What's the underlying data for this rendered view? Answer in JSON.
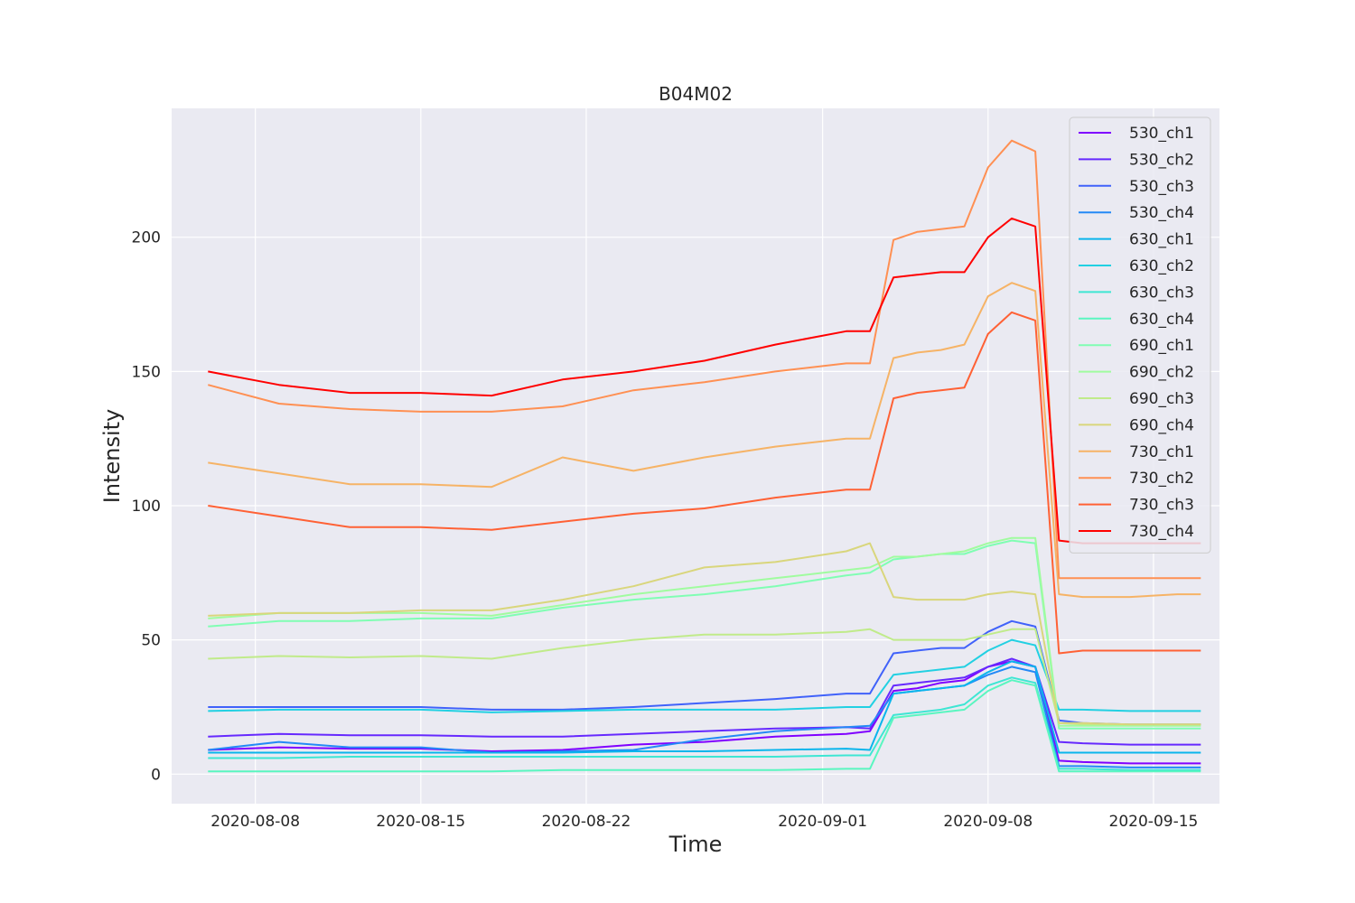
{
  "chart_data": {
    "type": "line",
    "title": "B04M02",
    "xlabel": "Time",
    "ylabel": "Intensity",
    "ylim": [
      -11,
      248
    ],
    "xlim": [
      "2020-08-04T11:00",
      "2020-09-17T19:00"
    ],
    "grid": true,
    "legend_placement": "top-right",
    "background": "#eaeaf2",
    "yticks": [
      0,
      50,
      100,
      150,
      200
    ],
    "xticks": [
      "2020-08-08",
      "2020-08-15",
      "2020-08-22",
      "2020-09-01",
      "2020-09-08",
      "2020-09-15"
    ],
    "x": [
      "2020-08-06",
      "2020-08-09",
      "2020-08-12",
      "2020-08-15",
      "2020-08-18",
      "2020-08-21",
      "2020-08-24",
      "2020-08-27",
      "2020-08-30",
      "2020-09-02",
      "2020-09-03",
      "2020-09-04",
      "2020-09-05",
      "2020-09-06",
      "2020-09-07",
      "2020-09-08",
      "2020-09-09",
      "2020-09-10",
      "2020-09-11",
      "2020-09-12",
      "2020-09-14",
      "2020-09-16",
      "2020-09-17"
    ],
    "series": [
      {
        "name": "530_ch1",
        "color": "#8000ff",
        "values": [
          9,
          10,
          9.5,
          9.5,
          8.5,
          9,
          11,
          12,
          14,
          15,
          16,
          31,
          32,
          34,
          35,
          40,
          42,
          40,
          5,
          4.5,
          4,
          4,
          4
        ]
      },
      {
        "name": "530_ch2",
        "color": "#6629fe",
        "values": [
          14,
          15,
          14.5,
          14.5,
          14,
          14,
          15,
          16,
          17,
          17.5,
          17,
          33,
          34,
          35,
          36,
          40,
          43,
          40,
          12,
          11.5,
          11,
          11,
          11
        ]
      },
      {
        "name": "530_ch3",
        "color": "#4062fa",
        "values": [
          25,
          25,
          25,
          25,
          24,
          24,
          25,
          26.5,
          28,
          30,
          30,
          45,
          46,
          47,
          47,
          53,
          57,
          55,
          20,
          19,
          18.5,
          18.5,
          18.5
        ]
      },
      {
        "name": "530_ch4",
        "color": "#2489f6",
        "values": [
          9,
          12,
          10,
          10,
          8,
          8.5,
          9,
          13,
          16,
          17.5,
          18,
          30,
          31,
          32,
          33,
          37,
          40,
          38,
          3,
          3,
          2.5,
          2.5,
          2.5
        ]
      },
      {
        "name": "630_ch1",
        "color": "#0ab5ec",
        "values": [
          8,
          8,
          8,
          8,
          8,
          8,
          8.5,
          8.5,
          9,
          9.5,
          9,
          30,
          31,
          32,
          33,
          38,
          42,
          40,
          8,
          8,
          8,
          8,
          8
        ]
      },
      {
        "name": "630_ch2",
        "color": "#22d0e2",
        "values": [
          23.5,
          24,
          24,
          24,
          23,
          23.5,
          24,
          24,
          24,
          25,
          25,
          37,
          38,
          39,
          40,
          46,
          50,
          48,
          24,
          24,
          23.5,
          23.5,
          23.5
        ]
      },
      {
        "name": "630_ch3",
        "color": "#3ee6d3",
        "values": [
          6,
          6,
          6.5,
          6.5,
          6.5,
          6.5,
          6.5,
          6.5,
          6.5,
          7,
          7,
          22,
          23,
          24,
          26,
          33,
          36,
          34,
          2,
          2,
          1.5,
          1.5,
          1.5
        ]
      },
      {
        "name": "630_ch4",
        "color": "#5af6c0",
        "values": [
          1,
          1,
          1,
          1,
          1,
          1.5,
          1.5,
          1.5,
          1.5,
          2,
          2,
          21,
          22,
          23,
          24,
          31,
          35,
          33,
          1,
          1,
          1,
          1,
          1
        ]
      },
      {
        "name": "690_ch1",
        "color": "#80feb3",
        "values": [
          55,
          57,
          57,
          58,
          58,
          62,
          65,
          67,
          70,
          74,
          75,
          80,
          81,
          82,
          82,
          85,
          87,
          86,
          17,
          17,
          17,
          17,
          17
        ]
      },
      {
        "name": "690_ch2",
        "color": "#a0fc9f",
        "values": [
          58,
          60,
          60,
          60,
          59,
          63,
          67,
          70,
          73,
          76,
          77,
          81,
          81,
          82,
          83,
          86,
          88,
          88,
          18,
          18,
          18,
          18,
          18
        ]
      },
      {
        "name": "690_ch3",
        "color": "#c0eb8a",
        "values": [
          43,
          44,
          43.5,
          44,
          43,
          47,
          50,
          52,
          52,
          53,
          54,
          50,
          50,
          50,
          50,
          52,
          54,
          54,
          19,
          18.5,
          18.5,
          18.5,
          18.5
        ]
      },
      {
        "name": "690_ch4",
        "color": "#d9d67c",
        "values": [
          59,
          60,
          60,
          61,
          61,
          65,
          70,
          77,
          79,
          83,
          86,
          66,
          65,
          65,
          65,
          67,
          68,
          67,
          19,
          19,
          18.5,
          18.5,
          18.5
        ]
      },
      {
        "name": "730_ch1",
        "color": "#f6b366",
        "values": [
          116,
          112,
          108,
          108,
          107,
          118,
          113,
          118,
          122,
          125,
          125,
          155,
          157,
          158,
          160,
          178,
          183,
          180,
          67,
          66,
          66,
          67,
          67
        ]
      },
      {
        "name": "730_ch2",
        "color": "#ff9053",
        "values": [
          145,
          138,
          136,
          135,
          135,
          137,
          143,
          146,
          150,
          153,
          153,
          199,
          202,
          203,
          204,
          226,
          236,
          232,
          73,
          73,
          73,
          73,
          73
        ]
      },
      {
        "name": "730_ch3",
        "color": "#ff6135",
        "values": [
          100,
          96,
          92,
          92,
          91,
          94,
          97,
          99,
          103,
          106,
          106,
          140,
          142,
          143,
          144,
          164,
          172,
          169,
          45,
          46,
          46,
          46,
          46
        ]
      },
      {
        "name": "730_ch4",
        "color": "#ff0000",
        "values": [
          150,
          145,
          142,
          142,
          141,
          147,
          150,
          154,
          160,
          165,
          165,
          185,
          186,
          187,
          187,
          200,
          207,
          204,
          87,
          86,
          86,
          86,
          86
        ]
      }
    ]
  }
}
